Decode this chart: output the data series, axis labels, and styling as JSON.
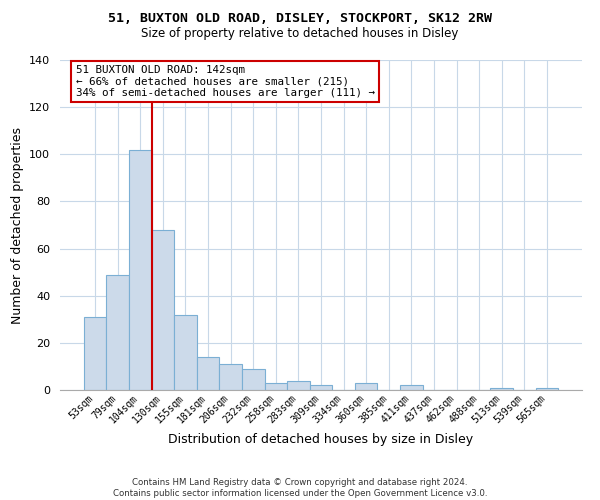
{
  "title": "51, BUXTON OLD ROAD, DISLEY, STOCKPORT, SK12 2RW",
  "subtitle": "Size of property relative to detached houses in Disley",
  "xlabel": "Distribution of detached houses by size in Disley",
  "ylabel": "Number of detached properties",
  "bar_labels": [
    "53sqm",
    "79sqm",
    "104sqm",
    "130sqm",
    "155sqm",
    "181sqm",
    "206sqm",
    "232sqm",
    "258sqm",
    "283sqm",
    "309sqm",
    "334sqm",
    "360sqm",
    "385sqm",
    "411sqm",
    "437sqm",
    "462sqm",
    "488sqm",
    "513sqm",
    "539sqm",
    "565sqm"
  ],
  "bar_values": [
    31,
    49,
    102,
    68,
    32,
    14,
    11,
    9,
    3,
    4,
    2,
    0,
    3,
    0,
    2,
    0,
    0,
    0,
    1,
    0,
    1
  ],
  "bar_color": "#ccdaea",
  "bar_edge_color": "#7bafd4",
  "vline_color": "#cc0000",
  "vline_x_index": 3,
  "ylim": [
    0,
    140
  ],
  "yticks": [
    0,
    20,
    40,
    60,
    80,
    100,
    120,
    140
  ],
  "annotation_title": "51 BUXTON OLD ROAD: 142sqm",
  "annotation_line1": "← 66% of detached houses are smaller (215)",
  "annotation_line2": "34% of semi-detached houses are larger (111) →",
  "footer_line1": "Contains HM Land Registry data © Crown copyright and database right 2024.",
  "footer_line2": "Contains public sector information licensed under the Open Government Licence v3.0.",
  "background_color": "#ffffff",
  "grid_color": "#c8d8e8"
}
